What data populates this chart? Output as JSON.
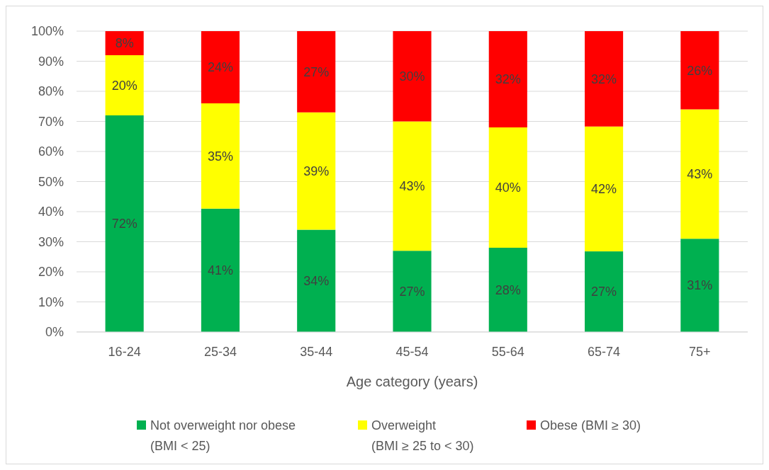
{
  "chart_data": {
    "type": "bar",
    "stacked": true,
    "xlabel": "Age category (years)",
    "categories": [
      "16-24",
      "25-34",
      "35-44",
      "45-54",
      "55-64",
      "65-74",
      "75+"
    ],
    "series": [
      {
        "name": "Not overweight nor obese\n(BMI < 25)",
        "color": "#00b050",
        "values": [
          72,
          41,
          34,
          27,
          28,
          26.8,
          31
        ],
        "value_labels": [
          "72%",
          "41%",
          "34%",
          "27%",
          "28%",
          "27%",
          "31%"
        ]
      },
      {
        "name": "Overweight\n(BMI ≥ 25 to < 30)",
        "color": "#ffff00",
        "values": [
          20,
          35,
          39,
          43,
          40,
          41.5,
          43
        ],
        "value_labels": [
          "20%",
          "35%",
          "39%",
          "43%",
          "40%",
          "42%",
          "43%"
        ]
      },
      {
        "name": "Obese (BMI ≥ 30)",
        "color": "#ff0000",
        "values": [
          8,
          24,
          27,
          30,
          32,
          31.7,
          26
        ],
        "value_labels": [
          "8%",
          "24%",
          "27%",
          "30%",
          "32%",
          "32%",
          "26%"
        ]
      }
    ],
    "ylim": [
      0,
      100
    ],
    "yticks": [
      {
        "value": 0,
        "label": "0%"
      },
      {
        "value": 10,
        "label": "10%"
      },
      {
        "value": 20,
        "label": "20%"
      },
      {
        "value": 30,
        "label": "30%"
      },
      {
        "value": 40,
        "label": "40%"
      },
      {
        "value": 50,
        "label": "50%"
      },
      {
        "value": 60,
        "label": "60%"
      },
      {
        "value": 70,
        "label": "70%"
      },
      {
        "value": 80,
        "label": "80%"
      },
      {
        "value": 90,
        "label": "90%"
      },
      {
        "value": 100,
        "label": "100%"
      }
    ],
    "grid": "y",
    "legend": "bottom"
  }
}
